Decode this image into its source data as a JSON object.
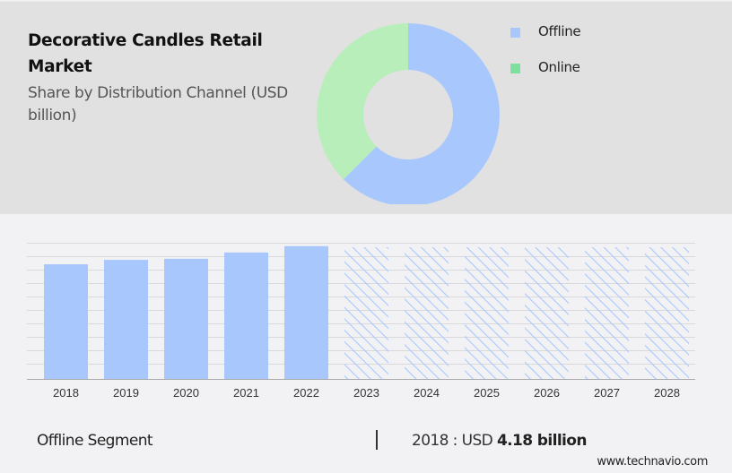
{
  "header": {
    "title": "Decorative Candles Retail Market",
    "subtitle": "Share by Distribution Channel (USD billion)"
  },
  "legend": [
    {
      "label": "Offline",
      "color": "#a8c8fd"
    },
    {
      "label": "Online",
      "color": "#7ee09e"
    }
  ],
  "footer": {
    "segment": "Offline Segment",
    "separator": "|",
    "year_prefix": "2018 : USD ",
    "value": "4.18 billion",
    "site": "www.technavio.com"
  },
  "colors": {
    "offline": "#a8c8fd",
    "online_donut": "#b8eeb9",
    "online_legend": "#7ee09e",
    "hatch": "#a8c8fd",
    "top_bg": "#e1e1e1",
    "bottom_bg": "#f2f2f4",
    "grid": "#d9d9dc",
    "axis": "#a9a9ab"
  },
  "chart_data": [
    {
      "type": "pie",
      "title": "Decorative Candles Retail Market - Share by Distribution Channel (USD billion)",
      "style": "donut",
      "labels": [
        "Offline",
        "Online"
      ],
      "values": [
        62.5,
        37.5
      ],
      "unit": "% share (approx.)",
      "legend_position": "right"
    },
    {
      "type": "bar",
      "title": "Offline Segment",
      "categories": [
        "2018",
        "2019",
        "2020",
        "2021",
        "2022",
        "2023",
        "2024",
        "2025",
        "2026",
        "2027",
        "2028"
      ],
      "series": [
        {
          "name": "Offline (USD billion)",
          "values": [
            4.18,
            4.34,
            4.38,
            4.61,
            4.84,
            null,
            null,
            null,
            null,
            null,
            null
          ],
          "forecast_hatched": [
            false,
            false,
            false,
            false,
            false,
            true,
            true,
            true,
            true,
            true,
            true
          ]
        }
      ],
      "annotation": "2018 : USD 4.18 billion",
      "xlabel": "",
      "ylabel": "",
      "grid": true,
      "y_axis_labels": false
    }
  ]
}
